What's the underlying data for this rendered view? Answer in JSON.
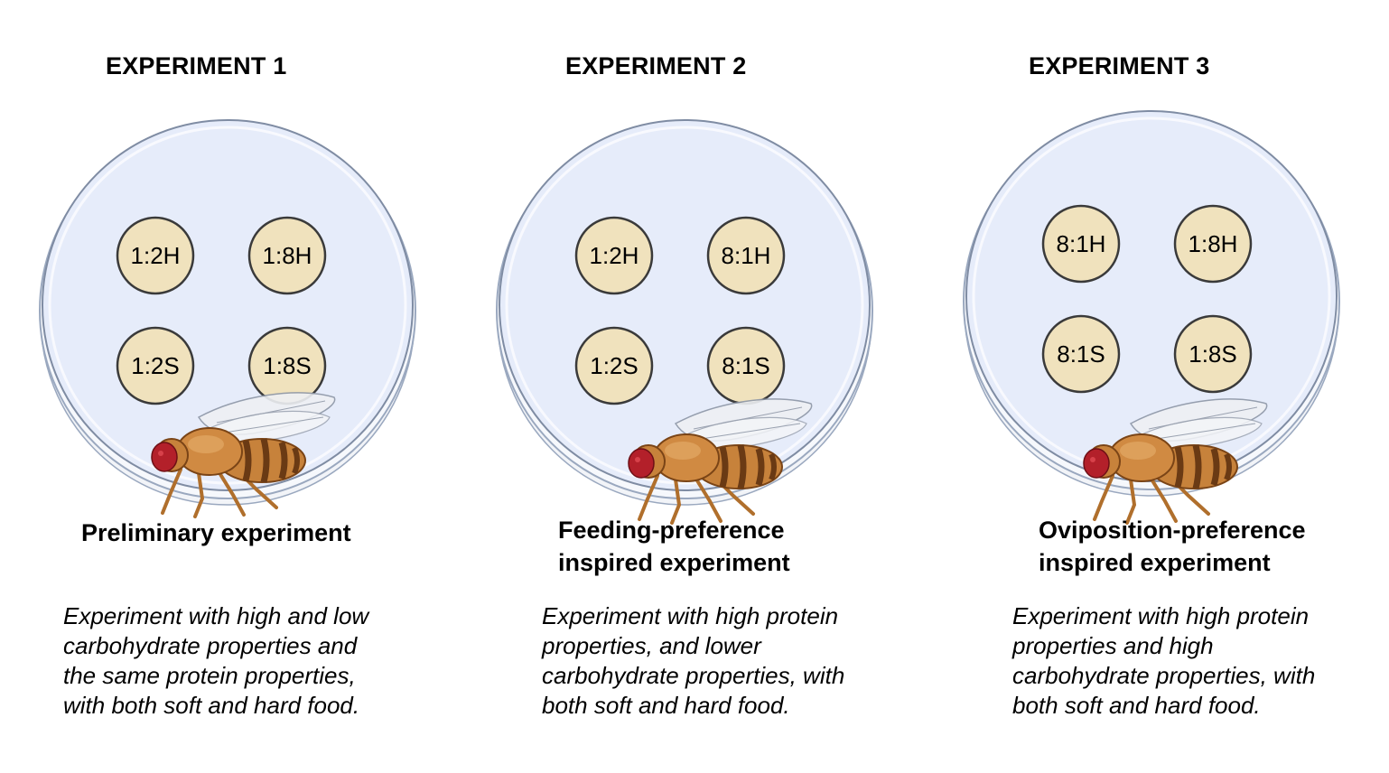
{
  "experiments": [
    {
      "title": "EXPERIMENT 1",
      "subtitle": "Preliminary experiment",
      "description": "Experiment with high and low\ncarbohydrate properties and\nthe same protein properties,\nwith both soft and hard food.",
      "wells": [
        "1:2H",
        "1:8H",
        "1:2S",
        "1:8S"
      ]
    },
    {
      "title": "EXPERIMENT 2",
      "subtitle": "Feeding-preference\ninspired experiment",
      "description": "Experiment with high protein\nproperties, and lower\ncarbohydrate properties, with\nboth soft and hard food.",
      "wells": [
        "1:2H",
        "8:1H",
        "1:2S",
        "8:1S"
      ]
    },
    {
      "title": "EXPERIMENT 3",
      "subtitle": "Oviposition-preference\ninspired experiment",
      "description": "Experiment with high protein\nproperties and high\ncarbohydrate properties, with\nboth soft and hard food.",
      "wells": [
        "8:1H",
        "1:8H",
        "8:1S",
        "1:8S"
      ]
    }
  ],
  "colors": {
    "dish_fill": "#e6ecfa",
    "dish_rim": "#9aa8bf",
    "well_fill": "#f0e2bd",
    "well_stroke": "#3a3a3a",
    "fly_body": "#c7823b",
    "fly_eye": "#b3202a",
    "fly_abdomen_band": "#6a3a14"
  }
}
